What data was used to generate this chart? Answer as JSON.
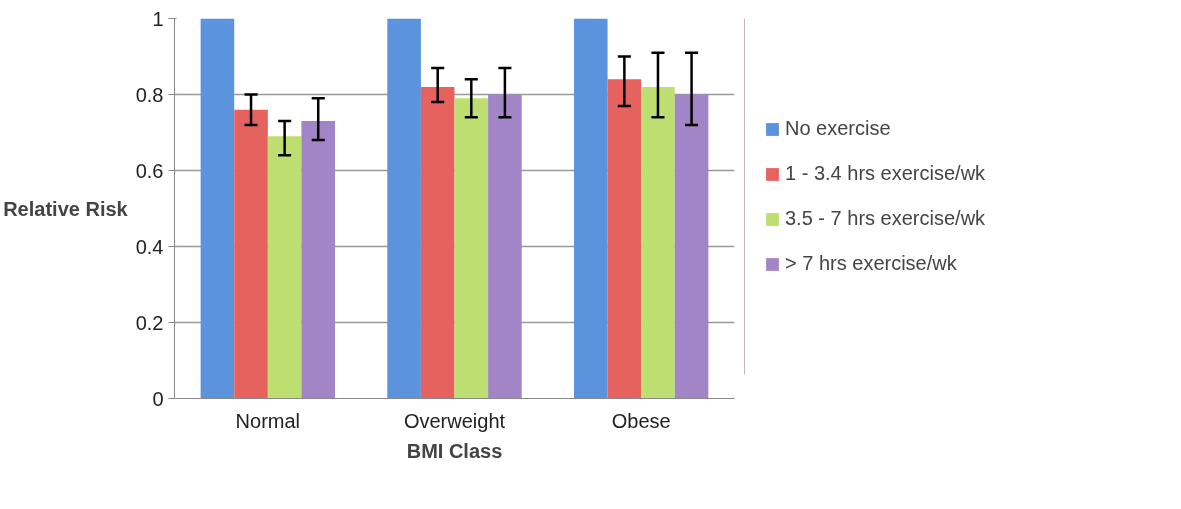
{
  "chart_data": {
    "type": "bar",
    "xlabel": "BMI Class",
    "ylabel": "Relative Risk",
    "categories": [
      "Normal",
      "Overweight",
      "Obese"
    ],
    "ylim": [
      0,
      1
    ],
    "yticks": [
      0,
      0.2,
      0.4,
      0.6,
      0.8,
      1
    ],
    "grid": "y",
    "legend": "right",
    "series": [
      {
        "name": "No exercise",
        "color": "#5b94dd",
        "values": [
          1,
          1,
          1
        ]
      },
      {
        "name": "1 - 3.4 hrs exercise/wk",
        "color": "#e5625f",
        "values": [
          0.76,
          0.82,
          0.84
        ],
        "errors": [
          [
            0.72,
            0.8
          ],
          [
            0.78,
            0.87
          ],
          [
            0.77,
            0.9
          ]
        ]
      },
      {
        "name": "3.5 - 7 hrs exercise/wk",
        "color": "#bddf72",
        "values": [
          0.69,
          0.79,
          0.82
        ],
        "errors": [
          [
            0.64,
            0.73
          ],
          [
            0.74,
            0.84
          ],
          [
            0.74,
            0.91
          ]
        ]
      },
      {
        "name": "> 7 hrs exercise/wk",
        "color": "#a185c6",
        "values": [
          0.73,
          0.8,
          0.8
        ],
        "errors": [
          [
            0.68,
            0.79
          ],
          [
            0.74,
            0.87
          ],
          [
            0.72,
            0.91
          ]
        ]
      }
    ]
  }
}
